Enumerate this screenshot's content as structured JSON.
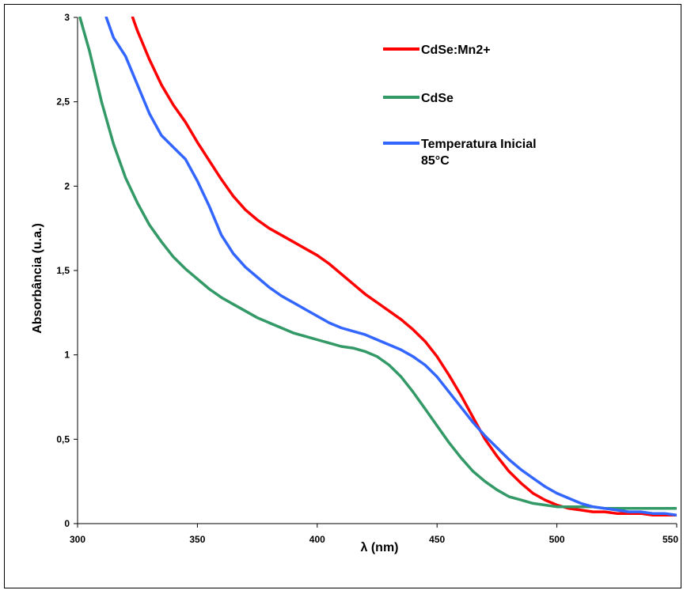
{
  "chart_data": {
    "type": "line",
    "xlabel": "λ (nm)",
    "ylabel": "Absorbância (u.a.)",
    "xlim": [
      300,
      550
    ],
    "ylim": [
      0,
      3
    ],
    "x_ticks": [
      300,
      350,
      400,
      450,
      500,
      550
    ],
    "y_ticks": [
      0,
      0.5,
      1,
      1.5,
      2,
      2.5,
      3
    ],
    "x_tick_labels": [
      "300",
      "350",
      "400",
      "450",
      "500",
      "550"
    ],
    "y_tick_labels": [
      "0",
      "0,5",
      "1",
      "1,5",
      "2",
      "2,5",
      "3"
    ],
    "grid": false,
    "legend_position": "top-right",
    "series": [
      {
        "name": "CdSe:Mn2+",
        "color": "#ff0000",
        "x": [
          323,
          325,
          330,
          335,
          340,
          345,
          350,
          355,
          360,
          365,
          370,
          375,
          380,
          385,
          390,
          395,
          400,
          405,
          410,
          415,
          420,
          425,
          430,
          435,
          440,
          445,
          450,
          455,
          460,
          465,
          470,
          475,
          480,
          485,
          490,
          495,
          500,
          505,
          510,
          515,
          520,
          525,
          530,
          535,
          540,
          545,
          550
        ],
        "y": [
          3.0,
          2.92,
          2.75,
          2.6,
          2.48,
          2.38,
          2.26,
          2.15,
          2.04,
          1.94,
          1.86,
          1.8,
          1.75,
          1.71,
          1.67,
          1.63,
          1.59,
          1.54,
          1.48,
          1.42,
          1.36,
          1.31,
          1.26,
          1.21,
          1.15,
          1.08,
          0.99,
          0.88,
          0.76,
          0.63,
          0.5,
          0.4,
          0.31,
          0.24,
          0.18,
          0.14,
          0.11,
          0.09,
          0.08,
          0.07,
          0.07,
          0.06,
          0.06,
          0.06,
          0.05,
          0.05,
          0.05
        ]
      },
      {
        "name": "CdSe",
        "color": "#339966",
        "x": [
          301,
          305,
          310,
          315,
          320,
          325,
          330,
          335,
          340,
          345,
          350,
          355,
          360,
          365,
          370,
          375,
          380,
          385,
          390,
          395,
          400,
          405,
          410,
          415,
          420,
          425,
          430,
          435,
          440,
          445,
          450,
          455,
          460,
          465,
          470,
          475,
          480,
          485,
          490,
          495,
          500,
          505,
          510,
          515,
          520,
          525,
          530,
          535,
          540,
          545,
          550
        ],
        "y": [
          3.0,
          2.8,
          2.5,
          2.25,
          2.05,
          1.9,
          1.77,
          1.67,
          1.58,
          1.51,
          1.45,
          1.39,
          1.34,
          1.3,
          1.26,
          1.22,
          1.19,
          1.16,
          1.13,
          1.11,
          1.09,
          1.07,
          1.05,
          1.04,
          1.02,
          0.99,
          0.94,
          0.87,
          0.78,
          0.68,
          0.58,
          0.48,
          0.39,
          0.31,
          0.25,
          0.2,
          0.16,
          0.14,
          0.12,
          0.11,
          0.1,
          0.1,
          0.1,
          0.1,
          0.09,
          0.09,
          0.09,
          0.09,
          0.09,
          0.09,
          0.09
        ]
      },
      {
        "name": "Temperatura Inicial 85°C",
        "color": "#3366ff",
        "x": [
          312,
          315,
          320,
          325,
          330,
          335,
          340,
          345,
          350,
          355,
          360,
          365,
          370,
          375,
          380,
          385,
          390,
          395,
          400,
          405,
          410,
          415,
          420,
          425,
          430,
          435,
          440,
          445,
          450,
          455,
          460,
          465,
          470,
          475,
          480,
          485,
          490,
          495,
          500,
          505,
          510,
          515,
          520,
          525,
          530,
          535,
          540,
          545,
          550
        ],
        "y": [
          3.0,
          2.88,
          2.77,
          2.6,
          2.43,
          2.3,
          2.23,
          2.16,
          2.03,
          1.88,
          1.71,
          1.6,
          1.52,
          1.46,
          1.4,
          1.35,
          1.31,
          1.27,
          1.23,
          1.19,
          1.16,
          1.14,
          1.12,
          1.09,
          1.06,
          1.03,
          0.99,
          0.94,
          0.87,
          0.78,
          0.69,
          0.6,
          0.52,
          0.45,
          0.38,
          0.32,
          0.27,
          0.22,
          0.18,
          0.15,
          0.12,
          0.1,
          0.09,
          0.08,
          0.07,
          0.07,
          0.06,
          0.06,
          0.05
        ]
      }
    ],
    "legend": [
      {
        "lines": [
          "CdSe:Mn2+"
        ],
        "color": "#ff0000"
      },
      {
        "lines": [
          "CdSe"
        ],
        "color": "#339966"
      },
      {
        "lines": [
          "Temperatura Inicial",
          "85°C"
        ],
        "color": "#3366ff"
      }
    ]
  }
}
